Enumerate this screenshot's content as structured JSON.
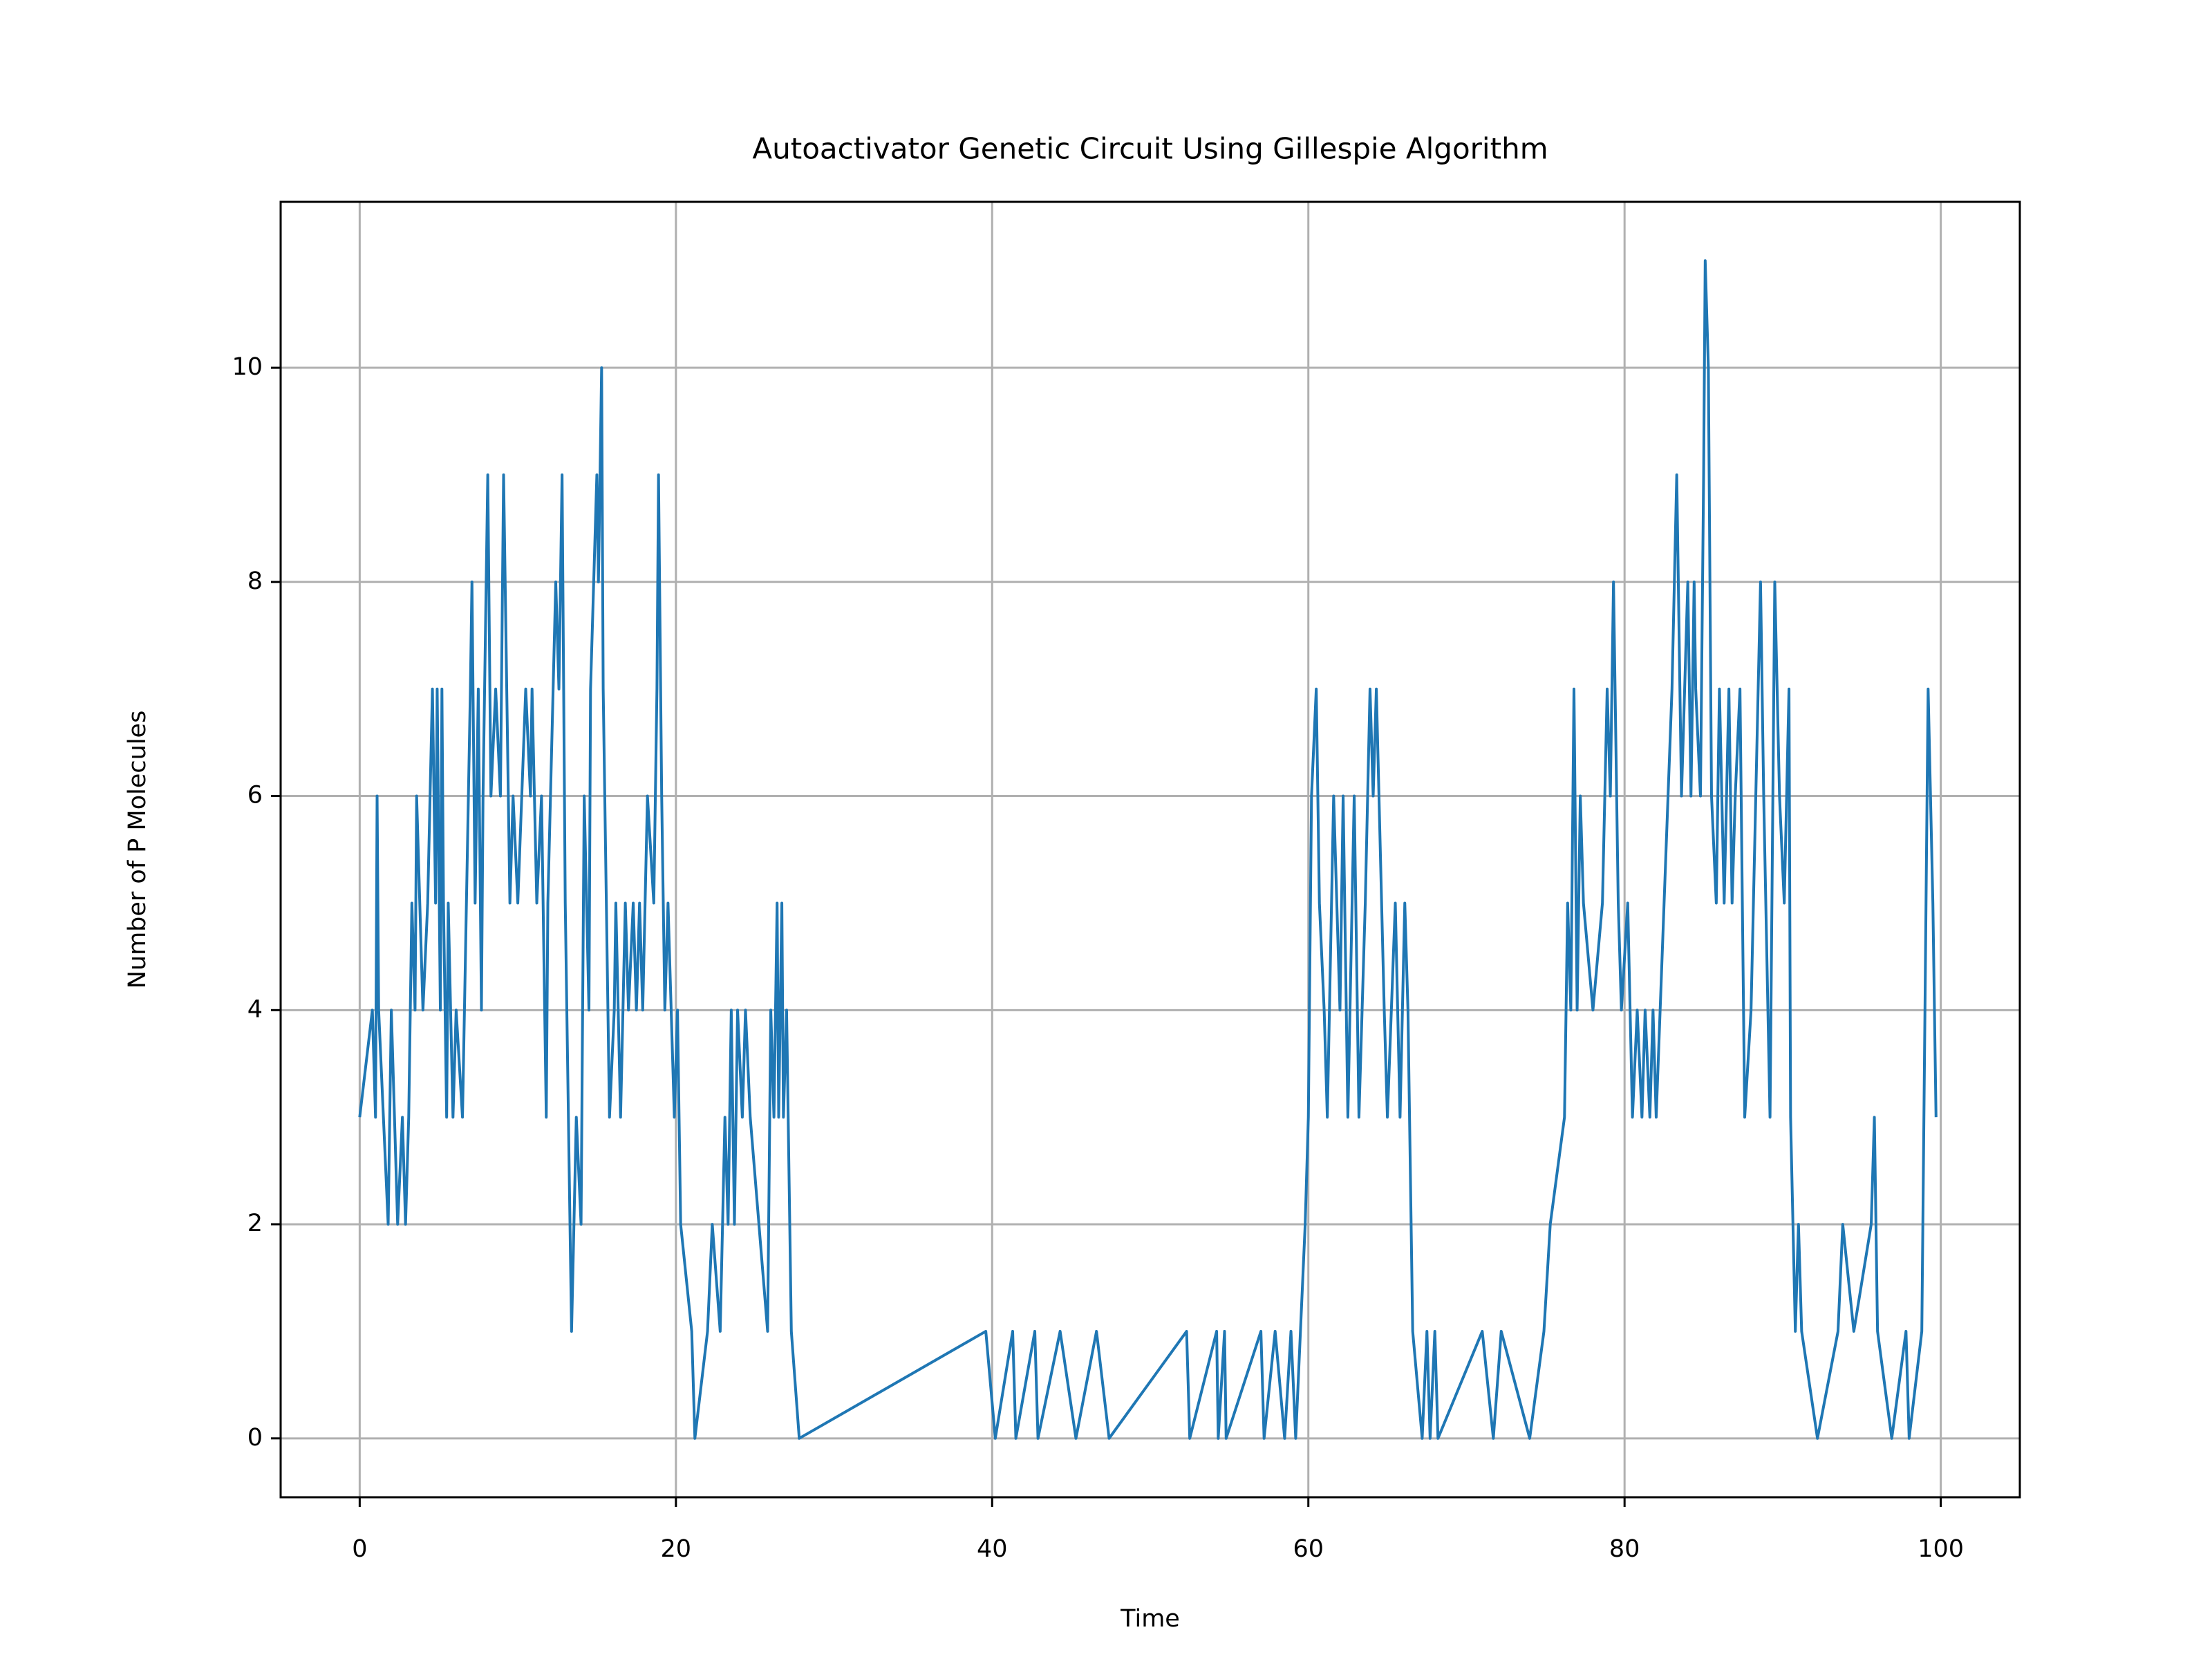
{
  "chart_data": {
    "type": "line",
    "title": "Autoactivator Genetic Circuit Using Gillespie Algorithm",
    "xlabel": "Time",
    "ylabel": "Number of P Molecules",
    "color": "#1f77b4",
    "grid": true,
    "xlim": [
      -5,
      105
    ],
    "xticks": [
      0,
      20,
      40,
      60,
      80,
      100
    ],
    "ylim": [
      -0.55,
      11.55
    ],
    "yticks": [
      0,
      2,
      4,
      6,
      8,
      10
    ],
    "x": [
      0,
      0.8,
      1.0,
      1.1,
      1.2,
      1.8,
      2.0,
      2.4,
      2.7,
      2.9,
      3.1,
      3.3,
      3.5,
      3.6,
      4.0,
      4.3,
      4.6,
      4.8,
      4.9,
      5.1,
      5.2,
      5.3,
      5.5,
      5.6,
      5.9,
      6.1,
      6.5,
      7.0,
      7.1,
      7.3,
      7.5,
      7.7,
      7.8,
      8.1,
      8.3,
      8.6,
      8.9,
      9.1,
      9.5,
      9.7,
      10.0,
      10.5,
      10.8,
      10.9,
      11.2,
      11.5,
      11.8,
      11.9,
      12.4,
      12.6,
      12.8,
      13.0,
      13.4,
      13.7,
      14.0,
      14.2,
      14.5,
      14.6,
      14.8,
      15.0,
      15.1,
      15.3,
      15.4,
      15.8,
      16.1,
      16.2,
      16.5,
      16.8,
      17.0,
      17.3,
      17.5,
      17.7,
      17.9,
      18.2,
      18.6,
      18.8,
      18.9,
      19.1,
      19.3,
      19.5,
      19.9,
      20.1,
      20.3,
      21.0,
      21.2,
      22.0,
      22.3,
      22.8,
      23.1,
      23.3,
      23.5,
      23.7,
      23.9,
      24.2,
      24.4,
      24.7,
      25.8,
      26.0,
      26.2,
      26.4,
      26.5,
      26.7,
      26.8,
      27.0,
      27.3,
      27.8,
      39.6,
      40.2,
      41.3,
      41.5,
      42.7,
      42.9,
      44.3,
      45.3,
      46.6,
      47.4,
      52.3,
      52.5,
      54.2,
      54.3,
      54.7,
      54.8,
      57.0,
      57.2,
      57.9,
      58.5,
      58.9,
      59.2,
      59.8,
      60.0,
      60.2,
      60.5,
      60.7,
      61.0,
      61.2,
      61.6,
      62.0,
      62.2,
      62.5,
      62.9,
      63.2,
      63.6,
      63.9,
      64.1,
      64.3,
      64.8,
      65.0,
      65.5,
      65.8,
      66.1,
      66.3,
      66.6,
      67.2,
      67.5,
      67.7,
      68.0,
      68.2,
      71.0,
      71.7,
      72.2,
      74.0,
      74.9,
      75.3,
      76.2,
      76.4,
      76.6,
      76.8,
      77.0,
      77.2,
      77.4,
      78.0,
      78.6,
      78.9,
      79.1,
      79.3,
      79.6,
      79.8,
      80.2,
      80.5,
      80.8,
      81.1,
      81.3,
      81.6,
      81.8,
      82.0,
      82.5,
      83.0,
      83.3,
      83.6,
      84.0,
      84.2,
      84.4,
      84.5,
      84.8,
      85.0,
      85.1,
      85.3,
      85.5,
      85.8,
      86.0,
      86.3,
      86.6,
      86.8,
      87.0,
      87.3,
      87.6,
      88.0,
      88.6,
      88.8,
      89.2,
      89.5,
      89.8,
      90.1,
      90.4,
      90.5,
      90.8,
      91.0,
      91.2,
      92.2,
      93.5,
      93.8,
      94.5,
      95.6,
      95.8,
      96.0,
      96.9,
      97.8,
      98.0,
      98.8,
      99.2,
      99.5,
      99.7
    ],
    "values": [
      3,
      4,
      3,
      6,
      4,
      2,
      4,
      2,
      3,
      2,
      3,
      5,
      4,
      6,
      4,
      5,
      7,
      5,
      7,
      4,
      7,
      5,
      3,
      5,
      3,
      4,
      3,
      7,
      8,
      5,
      7,
      4,
      6,
      9,
      6,
      7,
      6,
      9,
      5,
      6,
      5,
      7,
      6,
      7,
      5,
      6,
      3,
      5,
      8,
      7,
      9,
      5,
      1,
      3,
      2,
      6,
      4,
      7,
      8,
      9,
      8,
      10,
      7,
      3,
      4,
      5,
      3,
      5,
      4,
      5,
      4,
      5,
      4,
      6,
      5,
      7,
      9,
      6,
      4,
      5,
      3,
      4,
      2,
      1,
      0,
      1,
      2,
      1,
      3,
      2,
      4,
      2,
      4,
      3,
      4,
      3,
      1,
      4,
      3,
      5,
      3,
      5,
      3,
      4,
      1,
      0,
      1,
      0,
      1,
      0,
      1,
      0,
      1,
      0,
      1,
      0,
      1,
      0,
      1,
      0,
      1,
      0,
      1,
      0,
      1,
      0,
      1,
      0,
      2,
      3,
      6,
      7,
      5,
      4,
      3,
      6,
      4,
      6,
      3,
      6,
      3,
      5,
      7,
      6,
      7,
      4,
      3,
      5,
      3,
      5,
      4,
      1,
      0,
      1,
      0,
      1,
      0,
      1,
      0,
      1,
      0,
      1,
      2,
      3,
      5,
      4,
      7,
      4,
      6,
      5,
      4,
      5,
      7,
      6,
      8,
      5,
      4,
      5,
      3,
      4,
      3,
      4,
      3,
      4,
      3,
      5,
      7,
      9,
      6,
      8,
      6,
      8,
      7,
      6,
      9,
      11,
      10,
      6,
      5,
      7,
      5,
      7,
      5,
      6,
      7,
      3,
      4,
      8,
      6,
      3,
      8,
      6,
      5,
      7,
      3,
      1,
      2,
      1,
      0,
      1,
      2,
      1,
      2,
      3,
      1,
      0,
      1,
      0,
      1,
      7,
      5,
      3
    ]
  }
}
